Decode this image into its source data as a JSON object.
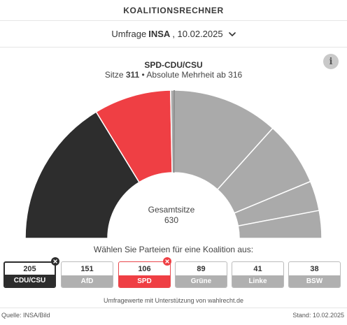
{
  "header": {
    "title": "KOALITIONSRECHNER"
  },
  "poll": {
    "prefix": "Umfrage",
    "institute": "INSA",
    "date": ", 10.02.2025"
  },
  "info_label": "i",
  "coalition": {
    "title": "SPD-CDU/CSU",
    "seats_label": "Sitze",
    "seats": "311",
    "majority_text": "• Absolute Mehrheit ab 316"
  },
  "center": {
    "label": "Gesamtsitze",
    "value": "630"
  },
  "prompt": "Wählen Sie Parteien für eine Koalition aus:",
  "chart_data": {
    "type": "pie",
    "variant": "parliament-hemicycle",
    "total": 630,
    "majority": 316,
    "slices": [
      {
        "party": "CDU/CSU",
        "seats": 205,
        "color": "#2d2d2d",
        "selected": true
      },
      {
        "party": "SPD",
        "seats": 106,
        "color": "#ef3f44",
        "selected": true
      },
      {
        "party": "AfD",
        "seats": 151,
        "color": "#aaaaaa",
        "selected": false
      },
      {
        "party": "Grüne",
        "seats": 89,
        "color": "#aaaaaa",
        "selected": false
      },
      {
        "party": "Linke",
        "seats": 41,
        "color": "#aaaaaa",
        "selected": false
      },
      {
        "party": "BSW",
        "seats": 38,
        "color": "#aaaaaa",
        "selected": false
      }
    ]
  },
  "parties": [
    {
      "seats": "205",
      "name": "CDU/CSU"
    },
    {
      "seats": "151",
      "name": "AfD"
    },
    {
      "seats": "106",
      "name": "SPD"
    },
    {
      "seats": "89",
      "name": "Grüne"
    },
    {
      "seats": "41",
      "name": "Linke"
    },
    {
      "seats": "38",
      "name": "BSW"
    }
  ],
  "colors": {
    "cdu": "#2d2d2d",
    "spd": "#ef3f44",
    "neutral": "#b0b0b0"
  },
  "support": "Umfragewerte mit Unterstützung von wahlrecht.de",
  "footer": {
    "source": "Quelle: INSA/Bild",
    "date": "Stand: 10.02.2025"
  }
}
